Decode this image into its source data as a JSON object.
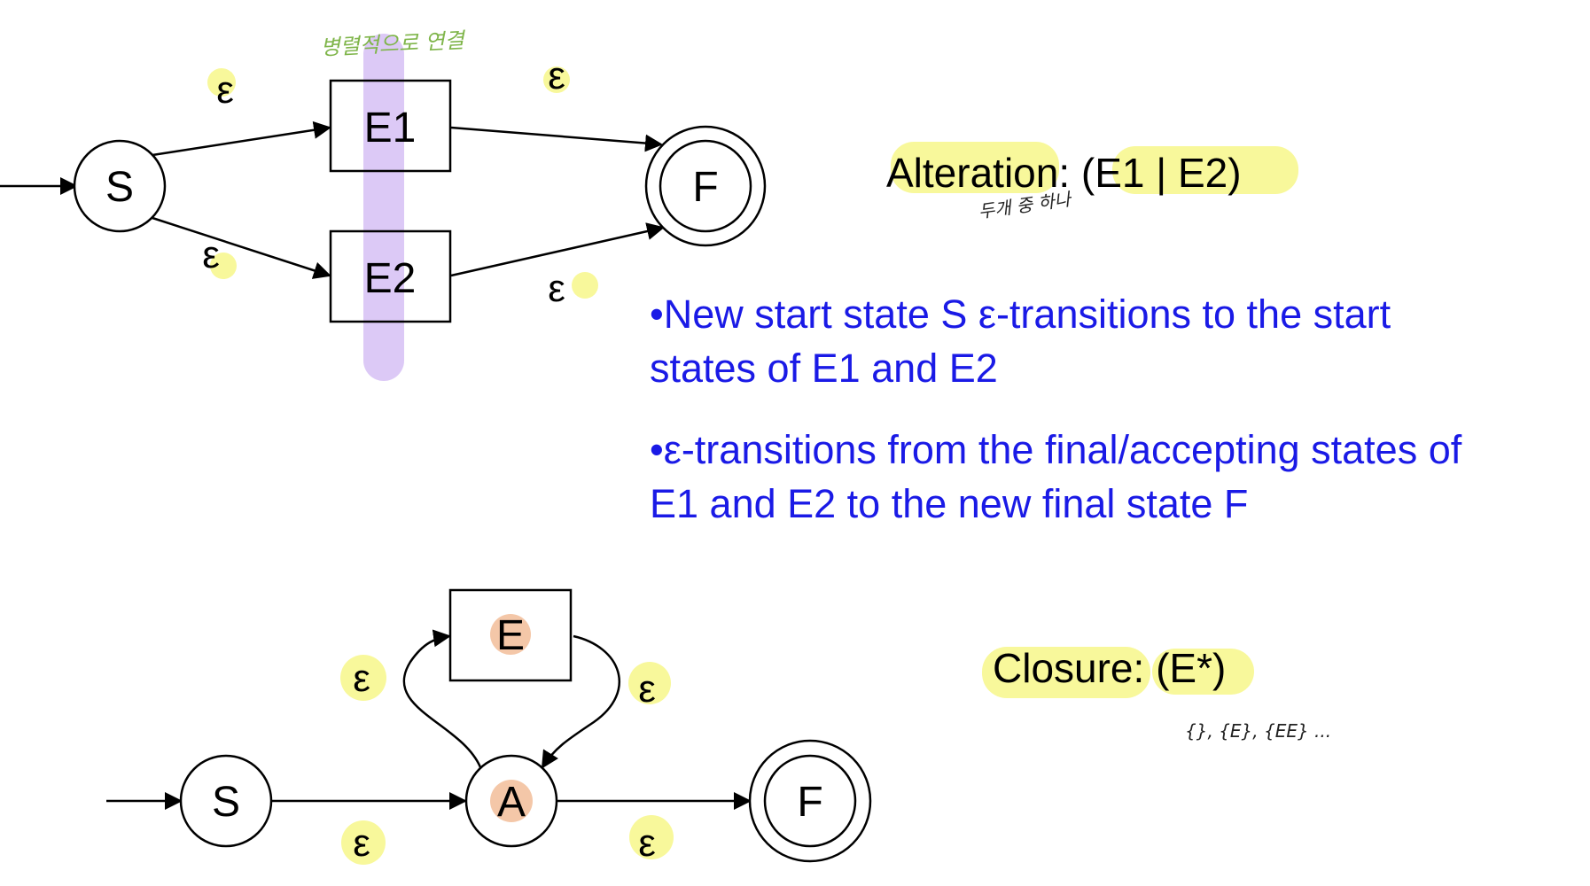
{
  "alteration": {
    "heading": "Alteration: (E1 | E2)",
    "handnote": "두개 중 하나",
    "box_note": "병렬적으로 연결",
    "states": {
      "start": "S",
      "e1": "E1",
      "e2": "E2",
      "final": "F"
    },
    "epsilon": "ε",
    "bullets": [
      [
        "•New start state S ε-transitions to the start",
        "states of E1 and E2"
      ],
      [
        "•ε-transitions from the final/accepting states of",
        "E1 and E2 to the new final state F"
      ]
    ]
  },
  "closure": {
    "heading": "Closure: (E*)",
    "handnote": "{}, {E}, {EE} ...",
    "states": {
      "start": "S",
      "e": "E",
      "a": "A",
      "final": "F"
    },
    "epsilon": "ε"
  },
  "colors": {
    "highlight": "#f6f57a",
    "purple_bar": "#d6bff5",
    "orange_dot": "#f4c7a8",
    "bullet_text": "#1a1ae6"
  }
}
